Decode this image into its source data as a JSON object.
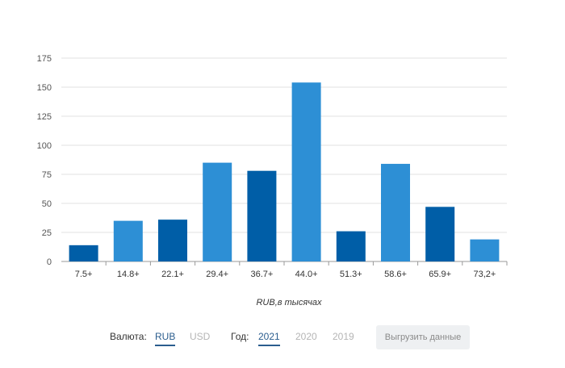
{
  "chart_data": {
    "type": "bar",
    "categories": [
      "7.5+",
      "14.8+",
      "22.1+",
      "29.4+",
      "36.7+",
      "44.0+",
      "51.3+",
      "58.6+",
      "65.9+",
      "73,2+"
    ],
    "values": [
      14,
      35,
      36,
      85,
      78,
      154,
      26,
      84,
      47,
      19
    ],
    "xlabel": "RUB,в тысячах",
    "ylim": [
      0,
      175
    ],
    "yticks": [
      0,
      25,
      50,
      75,
      100,
      125,
      150,
      175
    ],
    "grid": true,
    "colors": [
      "#005ea7",
      "#2d8fd5",
      "#005ea7",
      "#2d8fd5",
      "#005ea7",
      "#2d8fd5",
      "#005ea7",
      "#2d8fd5",
      "#005ea7",
      "#2d8fd5"
    ]
  },
  "controls": {
    "currency_label": "Валюта:",
    "currency_options": [
      "RUB",
      "USD"
    ],
    "currency_selected": "RUB",
    "year_label": "Год:",
    "year_options": [
      "2021",
      "2020",
      "2019"
    ],
    "year_selected": "2021",
    "export_label": "Выгрузить данные"
  }
}
